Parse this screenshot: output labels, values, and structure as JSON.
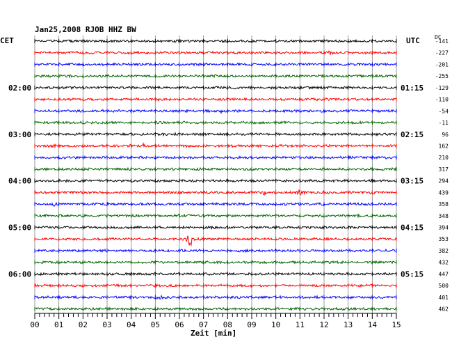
{
  "chart_data": {
    "type": "line",
    "title": "Jan25,2008   RJOB HHZ BW",
    "left_zone_label": "CET",
    "right_zone_label": "UTC",
    "dc_label": "DC",
    "xlabel": "Zeit [min]",
    "xlim": [
      0,
      15
    ],
    "x_ticks": [
      "00",
      "01",
      "02",
      "03",
      "04",
      "05",
      "06",
      "07",
      "08",
      "09",
      "10",
      "11",
      "12",
      "13",
      "14",
      "15"
    ],
    "trace_colors": [
      "#000000",
      "#ff0000",
      "#0000ff",
      "#006400"
    ],
    "left_hour_labels": [
      {
        "trace": 4,
        "text": "02:00"
      },
      {
        "trace": 8,
        "text": "03:00"
      },
      {
        "trace": 12,
        "text": "04:00"
      },
      {
        "trace": 16,
        "text": "05:00"
      },
      {
        "trace": 20,
        "text": "06:00"
      }
    ],
    "right_hour_labels": [
      {
        "trace": 4,
        "text": "01:15"
      },
      {
        "trace": 8,
        "text": "02:15"
      },
      {
        "trace": 12,
        "text": "03:15"
      },
      {
        "trace": 16,
        "text": "04:15"
      },
      {
        "trace": 20,
        "text": "05:15"
      }
    ],
    "dc_offsets": [
      "-141",
      "-227",
      "-201",
      "-255",
      "-129",
      "-110",
      "-54",
      "-11",
      "96",
      "162",
      "210",
      "317",
      "294",
      "439",
      "358",
      "348",
      "394",
      "353",
      "382",
      "432",
      "447",
      "500",
      "401",
      "462"
    ],
    "events": [
      {
        "trace": 17,
        "minute": 6.45,
        "amplitude": 18,
        "note": "large spike"
      },
      {
        "trace": 22,
        "minute": 5.2,
        "amplitude": 4
      },
      {
        "trace": 13,
        "minute": 9.5,
        "amplitude": 3
      },
      {
        "trace": 13,
        "minute": 11.0,
        "amplitude": 3
      },
      {
        "trace": 13,
        "minute": 14.0,
        "amplitude": 3
      },
      {
        "trace": 9,
        "minute": 0.7,
        "amplitude": 3
      },
      {
        "trace": 9,
        "minute": 4.5,
        "amplitude": 2
      },
      {
        "trace": 5,
        "minute": 5.2,
        "amplitude": 2
      },
      {
        "trace": 6,
        "minute": 7.7,
        "amplitude": 2
      },
      {
        "trace": 14,
        "minute": 0.8,
        "amplitude": 3
      },
      {
        "trace": 1,
        "minute": 12.3,
        "amplitude": 2
      }
    ]
  }
}
